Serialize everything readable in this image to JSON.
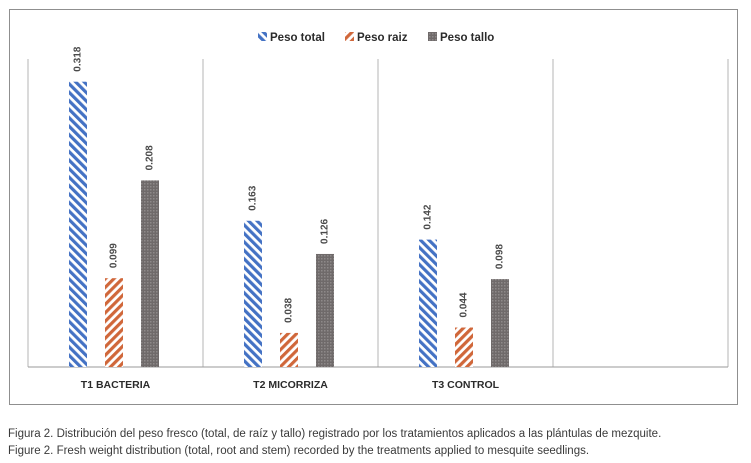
{
  "chart_data": {
    "type": "bar",
    "categories": [
      "T1 BACTERIA",
      "T2 MICORRIZA",
      "T3 CONTROL"
    ],
    "series": [
      {
        "name": "Peso total",
        "values": [
          0.318,
          0.163,
          0.142
        ],
        "color": "#4472c4",
        "pattern": "hatch-blue"
      },
      {
        "name": "Peso raiz",
        "values": [
          0.099,
          0.038,
          0.044
        ],
        "color": "#d0673a",
        "pattern": "hatch-orange"
      },
      {
        "name": "Peso tallo",
        "values": [
          0.208,
          0.126,
          0.098
        ],
        "color": "#6f6a6a",
        "pattern": "dots-gray"
      }
    ],
    "value_labels": [
      [
        "0.318",
        "0.163",
        "0.142"
      ],
      [
        "0.099",
        "0.038",
        "0.044"
      ],
      [
        "0.208",
        "0.126",
        "0.098"
      ]
    ],
    "ylim": [
      0,
      0.35
    ],
    "empty_slots": 1,
    "legend_position": "top-center",
    "grid": "vertical category separators"
  },
  "caption": {
    "line1": "Figura 2. Distribución del peso fresco (total, de raíz y tallo) registrado por los tratamientos aplicados a las plántulas de mezquite.",
    "line2": "Figure 2. Fresh weight distribution (total, root and stem) recorded by the treatments applied to mesquite seedlings."
  }
}
